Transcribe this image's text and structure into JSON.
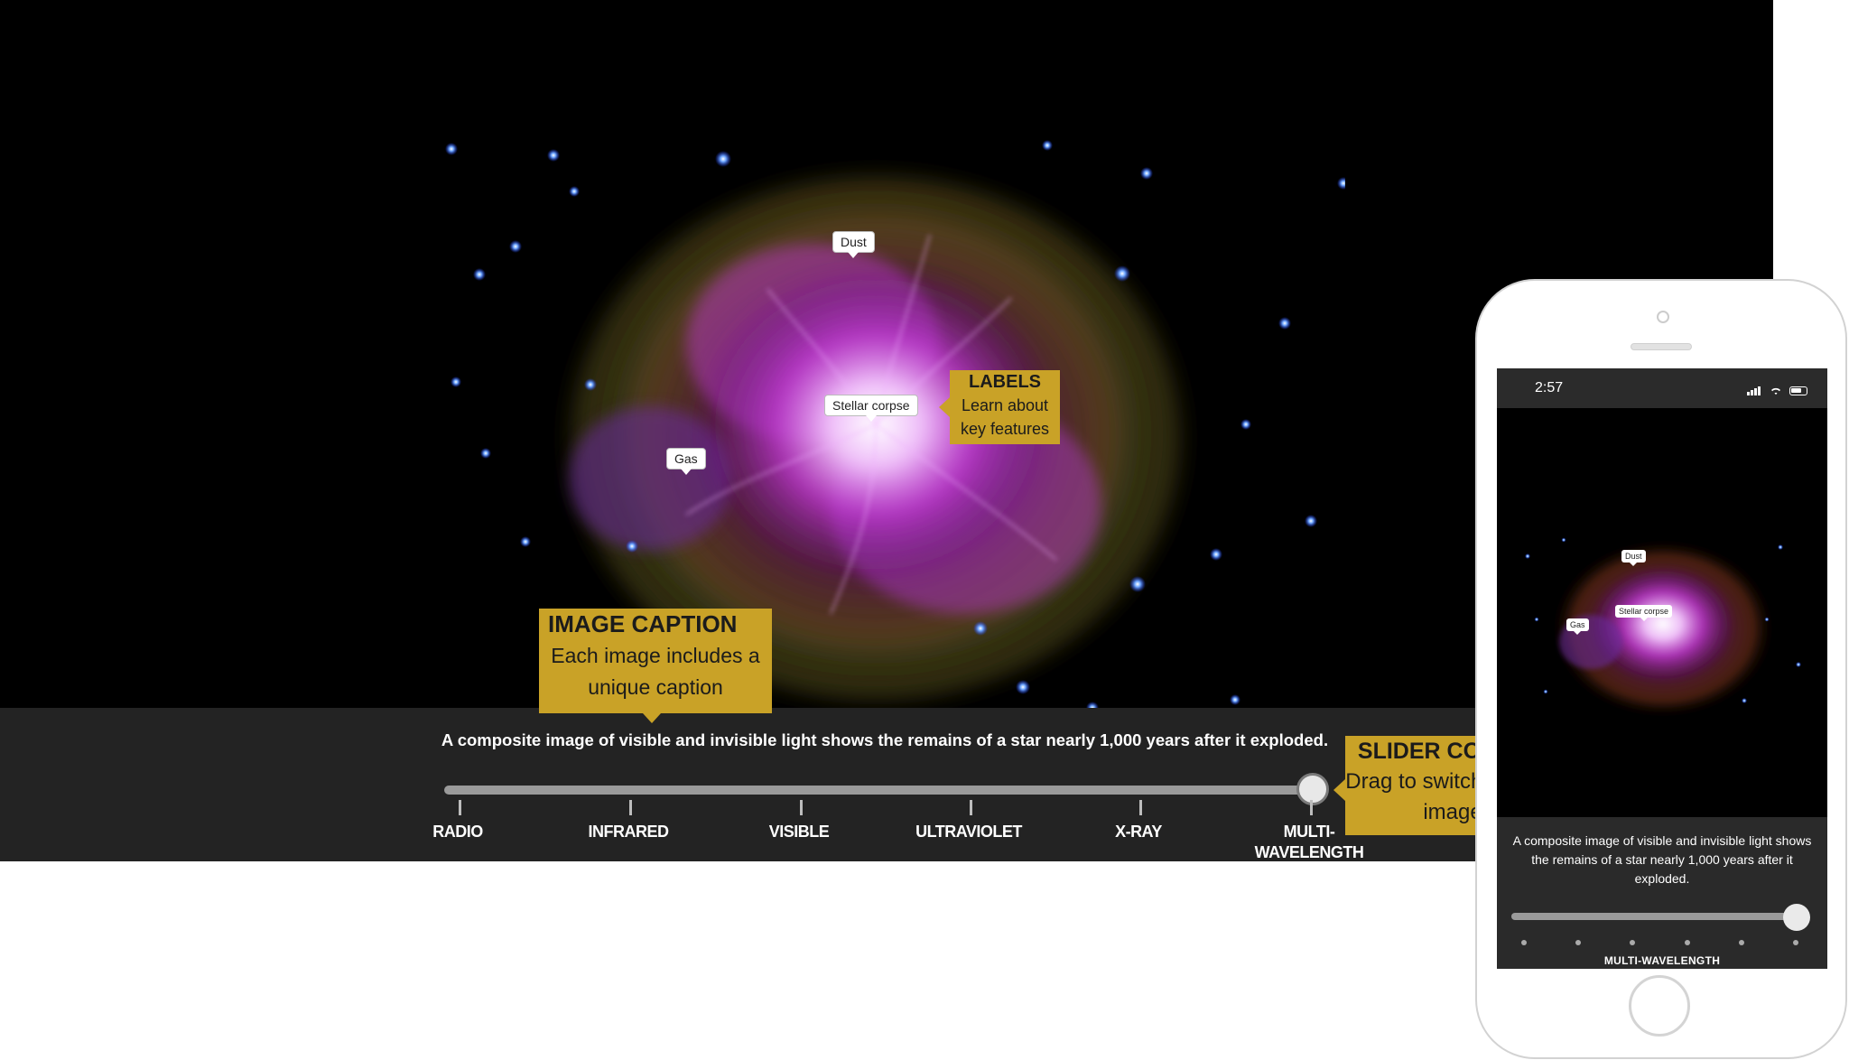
{
  "image": {
    "labels": {
      "dust": "Dust",
      "stellar_corpse": "Stellar corpse",
      "gas": "Gas"
    }
  },
  "caption": "A composite image of visible and invisible light shows the remains of a star nearly 1,000 years after it exploded.",
  "slider": {
    "value": "MULTI-WAVELENGTH",
    "stops": [
      "RADIO",
      "INFRARED",
      "VISIBLE",
      "ULTRAVIOLET",
      "X-RAY",
      "MULTI-\nWAVELENGTH"
    ]
  },
  "callouts": {
    "labels": {
      "title": "LABELS",
      "body": "Learn about key features"
    },
    "caption": {
      "title": "IMAGE CAPTION",
      "body": "Each image includes a unique caption"
    },
    "slider": {
      "title": "SLIDER CONTROL",
      "body": "Drag to switch between images"
    }
  },
  "phone": {
    "time": "2:57",
    "caption": "A composite image of visible and invisible light shows the remains of a star nearly 1,000 years after it exploded.",
    "active_stop": "MULTI-WAVELENGTH",
    "labels": {
      "dust": "Dust",
      "stellar_corpse": "Stellar corpse",
      "gas": "Gas"
    }
  },
  "colors": {
    "callout": "#c9a227",
    "caption_bar": "#232323"
  }
}
